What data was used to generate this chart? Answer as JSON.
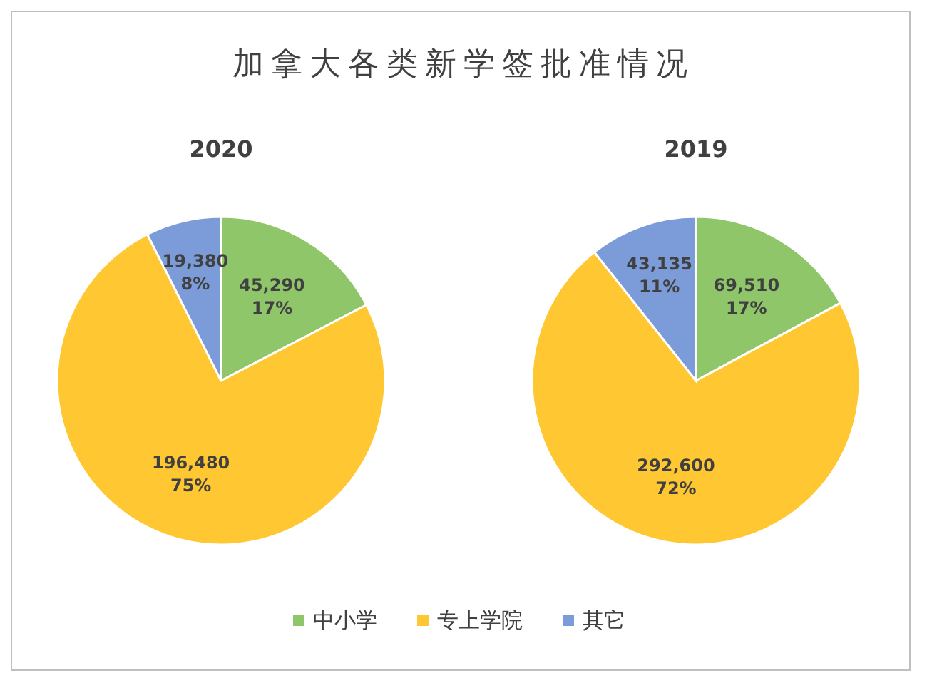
{
  "chart_data": [
    {
      "type": "pie",
      "title": "加拿大各类新学签批准情况",
      "subtitle": "2020",
      "categories": [
        "中小学",
        "专上学院",
        "其它"
      ],
      "values": [
        45290,
        196480,
        19380
      ],
      "colors": [
        "#8fc66a",
        "#ffc832",
        "#7c9cd9"
      ],
      "value_labels": [
        "45,290\n17%",
        "196,480\n75%",
        "19,380\n8%"
      ],
      "legend": "bottom"
    },
    {
      "type": "pie",
      "subtitle": "2019",
      "values": [
        69510,
        292600,
        43135
      ],
      "colors": [
        "#8fc66a",
        "#ffc832",
        "#7c9cd9"
      ],
      "value_labels": [
        "69,510\n17%",
        "292,600\n72%",
        "43,135\n11%"
      ]
    }
  ]
}
